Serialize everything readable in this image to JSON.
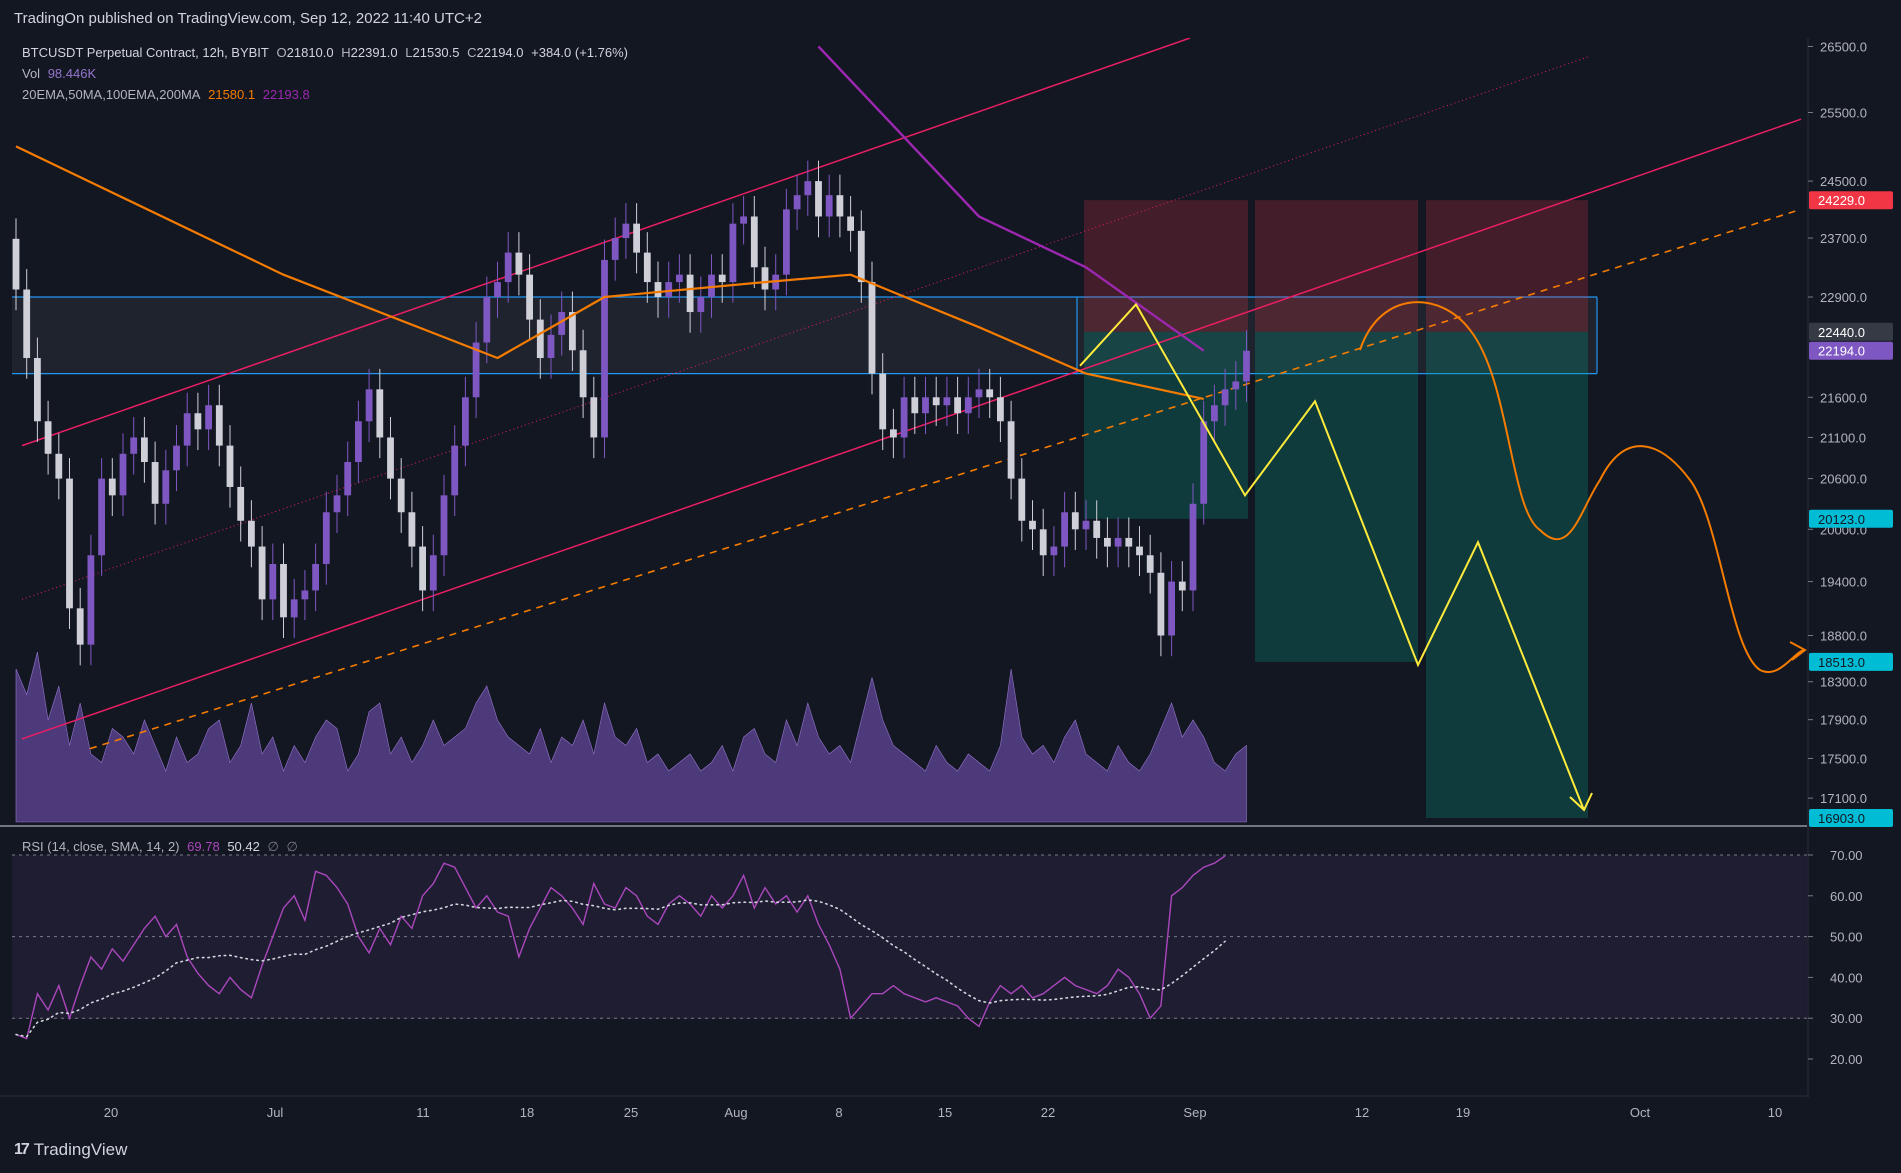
{
  "header": {
    "published_line": "TradingOn published on TradingView.com, Sep 12, 2022 11:40 UTC+2"
  },
  "footer": {
    "brand": "TradingView",
    "brand_mark": "17"
  },
  "legend": {
    "symbol": "BTCUSDT Perpetual Contract, 12h, BYBIT",
    "open_label": "O",
    "open": "21810.0",
    "high_label": "H",
    "high": "22391.0",
    "low_label": "L",
    "low": "21530.5",
    "close_label": "C",
    "close": "22194.0",
    "change": "+384.0 (+1.76%)",
    "vol_label": "Vol",
    "vol_value": "98.446K",
    "ma_label": "20EMA,50MA,100EMA,200MA",
    "ma_value1": "21580.1",
    "ma_value2": "22193.8"
  },
  "rsi_legend": {
    "label": "RSI (14, close, SMA, 14, 2)",
    "rsi": "69.78",
    "sma": "50.42",
    "e1": "∅",
    "e2": "∅"
  },
  "colors": {
    "background": "#131722",
    "up_candle": "#7e57c2",
    "down_candle": "#cfcfd8",
    "ema": "#f57c00",
    "ma200": "#9c27b0",
    "channel": "#e91e63",
    "pattern": "#ffeb3b",
    "level": "#2196f3",
    "stop_zone": "#f23645",
    "target_zone": "#089981",
    "rsi": "#ab47bc"
  },
  "price_axis": {
    "ticks": [
      "26500.0",
      "25500.0",
      "24500.0",
      "23700.0",
      "22900.0",
      "21600.0",
      "21100.0",
      "20600.0",
      "20000.0",
      "19400.0",
      "18800.0",
      "18300.0",
      "17900.0",
      "17500.0",
      "17100.0"
    ],
    "badges": [
      {
        "text": "24229.0",
        "color": "#f23645",
        "text_color": "#ffffff"
      },
      {
        "text": "22440.0",
        "color": "#363a45",
        "text_color": "#ffffff"
      },
      {
        "text": "22194.0",
        "color": "#7e57c2",
        "text_color": "#ffffff"
      },
      {
        "text": "20123.0",
        "color": "#00bcd4",
        "text_color": "#131722"
      },
      {
        "text": "18513.0",
        "color": "#00bcd4",
        "text_color": "#131722"
      },
      {
        "text": "16903.0",
        "color": "#00bcd4",
        "text_color": "#131722"
      }
    ]
  },
  "rsi_axis": {
    "ticks": [
      "70.00",
      "60.00",
      "50.00",
      "40.00",
      "30.00",
      "20.00"
    ]
  },
  "time_axis": {
    "labels": [
      "20",
      "Jul",
      "11",
      "18",
      "25",
      "Aug",
      "8",
      "15",
      "22",
      "Sep",
      "12",
      "19",
      "Oct",
      "10"
    ]
  },
  "chart_data": {
    "type": "candlestick",
    "symbol": "BTCUSDT Perpetual Contract",
    "interval": "12h",
    "y_scale": "log",
    "ylim": [
      16903,
      26600
    ],
    "last_price": 22194.0,
    "candles_close_approx": [
      23000,
      22100,
      21300,
      20900,
      20600,
      19100,
      18700,
      19700,
      20600,
      20400,
      20900,
      21100,
      20800,
      20300,
      20700,
      21000,
      21400,
      21200,
      21500,
      21000,
      20500,
      20100,
      19800,
      19200,
      19600,
      19000,
      19200,
      19300,
      19600,
      20200,
      20400,
      20800,
      21300,
      21700,
      21100,
      20600,
      20200,
      19800,
      19300,
      19700,
      20400,
      21000,
      21600,
      22300,
      22900,
      23100,
      23500,
      23200,
      22600,
      22100,
      22400,
      22700,
      22200,
      21600,
      21100,
      23400,
      23700,
      23900,
      23500,
      23100,
      22900,
      23100,
      23200,
      22700,
      22900,
      23200,
      23100,
      23900,
      24000,
      23300,
      23000,
      23200,
      24100,
      24300,
      24500,
      24000,
      24300,
      24000,
      23800,
      23100,
      21900,
      21200,
      21100,
      21600,
      21400,
      21600,
      21500,
      21600,
      21400,
      21600,
      21700,
      21600,
      21300,
      20600,
      20100,
      20000,
      19700,
      19800,
      20200,
      20000,
      20100,
      19900,
      19800,
      19900,
      19800,
      19700,
      19500,
      18800,
      19400,
      19300,
      20300,
      21300,
      21500,
      21700,
      21800,
      22194
    ],
    "ema_points_approx": [
      [
        0,
        25000
      ],
      [
        25,
        23200
      ],
      [
        45,
        22100
      ],
      [
        55,
        22900
      ],
      [
        70,
        23100
      ],
      [
        78,
        23200
      ],
      [
        90,
        22500
      ],
      [
        100,
        21900
      ],
      [
        111,
        21580
      ]
    ],
    "ma200_points_approx": [
      [
        75,
        26500
      ],
      [
        90,
        24000
      ],
      [
        100,
        23300
      ],
      [
        111,
        22194
      ]
    ],
    "volume_note": "Vol 98.446K",
    "rsi_last": 69.78,
    "rsi_sma_last": 50.42,
    "rsi_levels": [
      70,
      50,
      30
    ],
    "levels": [
      {
        "name": "resistance_top",
        "price": 22900
      },
      {
        "name": "resistance_bottom",
        "price": 21900
      },
      {
        "name": "stop",
        "price": 24229.0
      },
      {
        "name": "entry",
        "price": 22440.0
      },
      {
        "name": "target_1",
        "price": 20123.0
      },
      {
        "name": "target_2",
        "price": 18513.0
      },
      {
        "name": "target_3",
        "price": 16903.0
      }
    ],
    "time_labels": [
      "20",
      "Jul",
      "11",
      "18",
      "25",
      "Aug",
      "8",
      "15",
      "22",
      "Sep",
      "12",
      "19",
      "Oct",
      "10"
    ]
  }
}
